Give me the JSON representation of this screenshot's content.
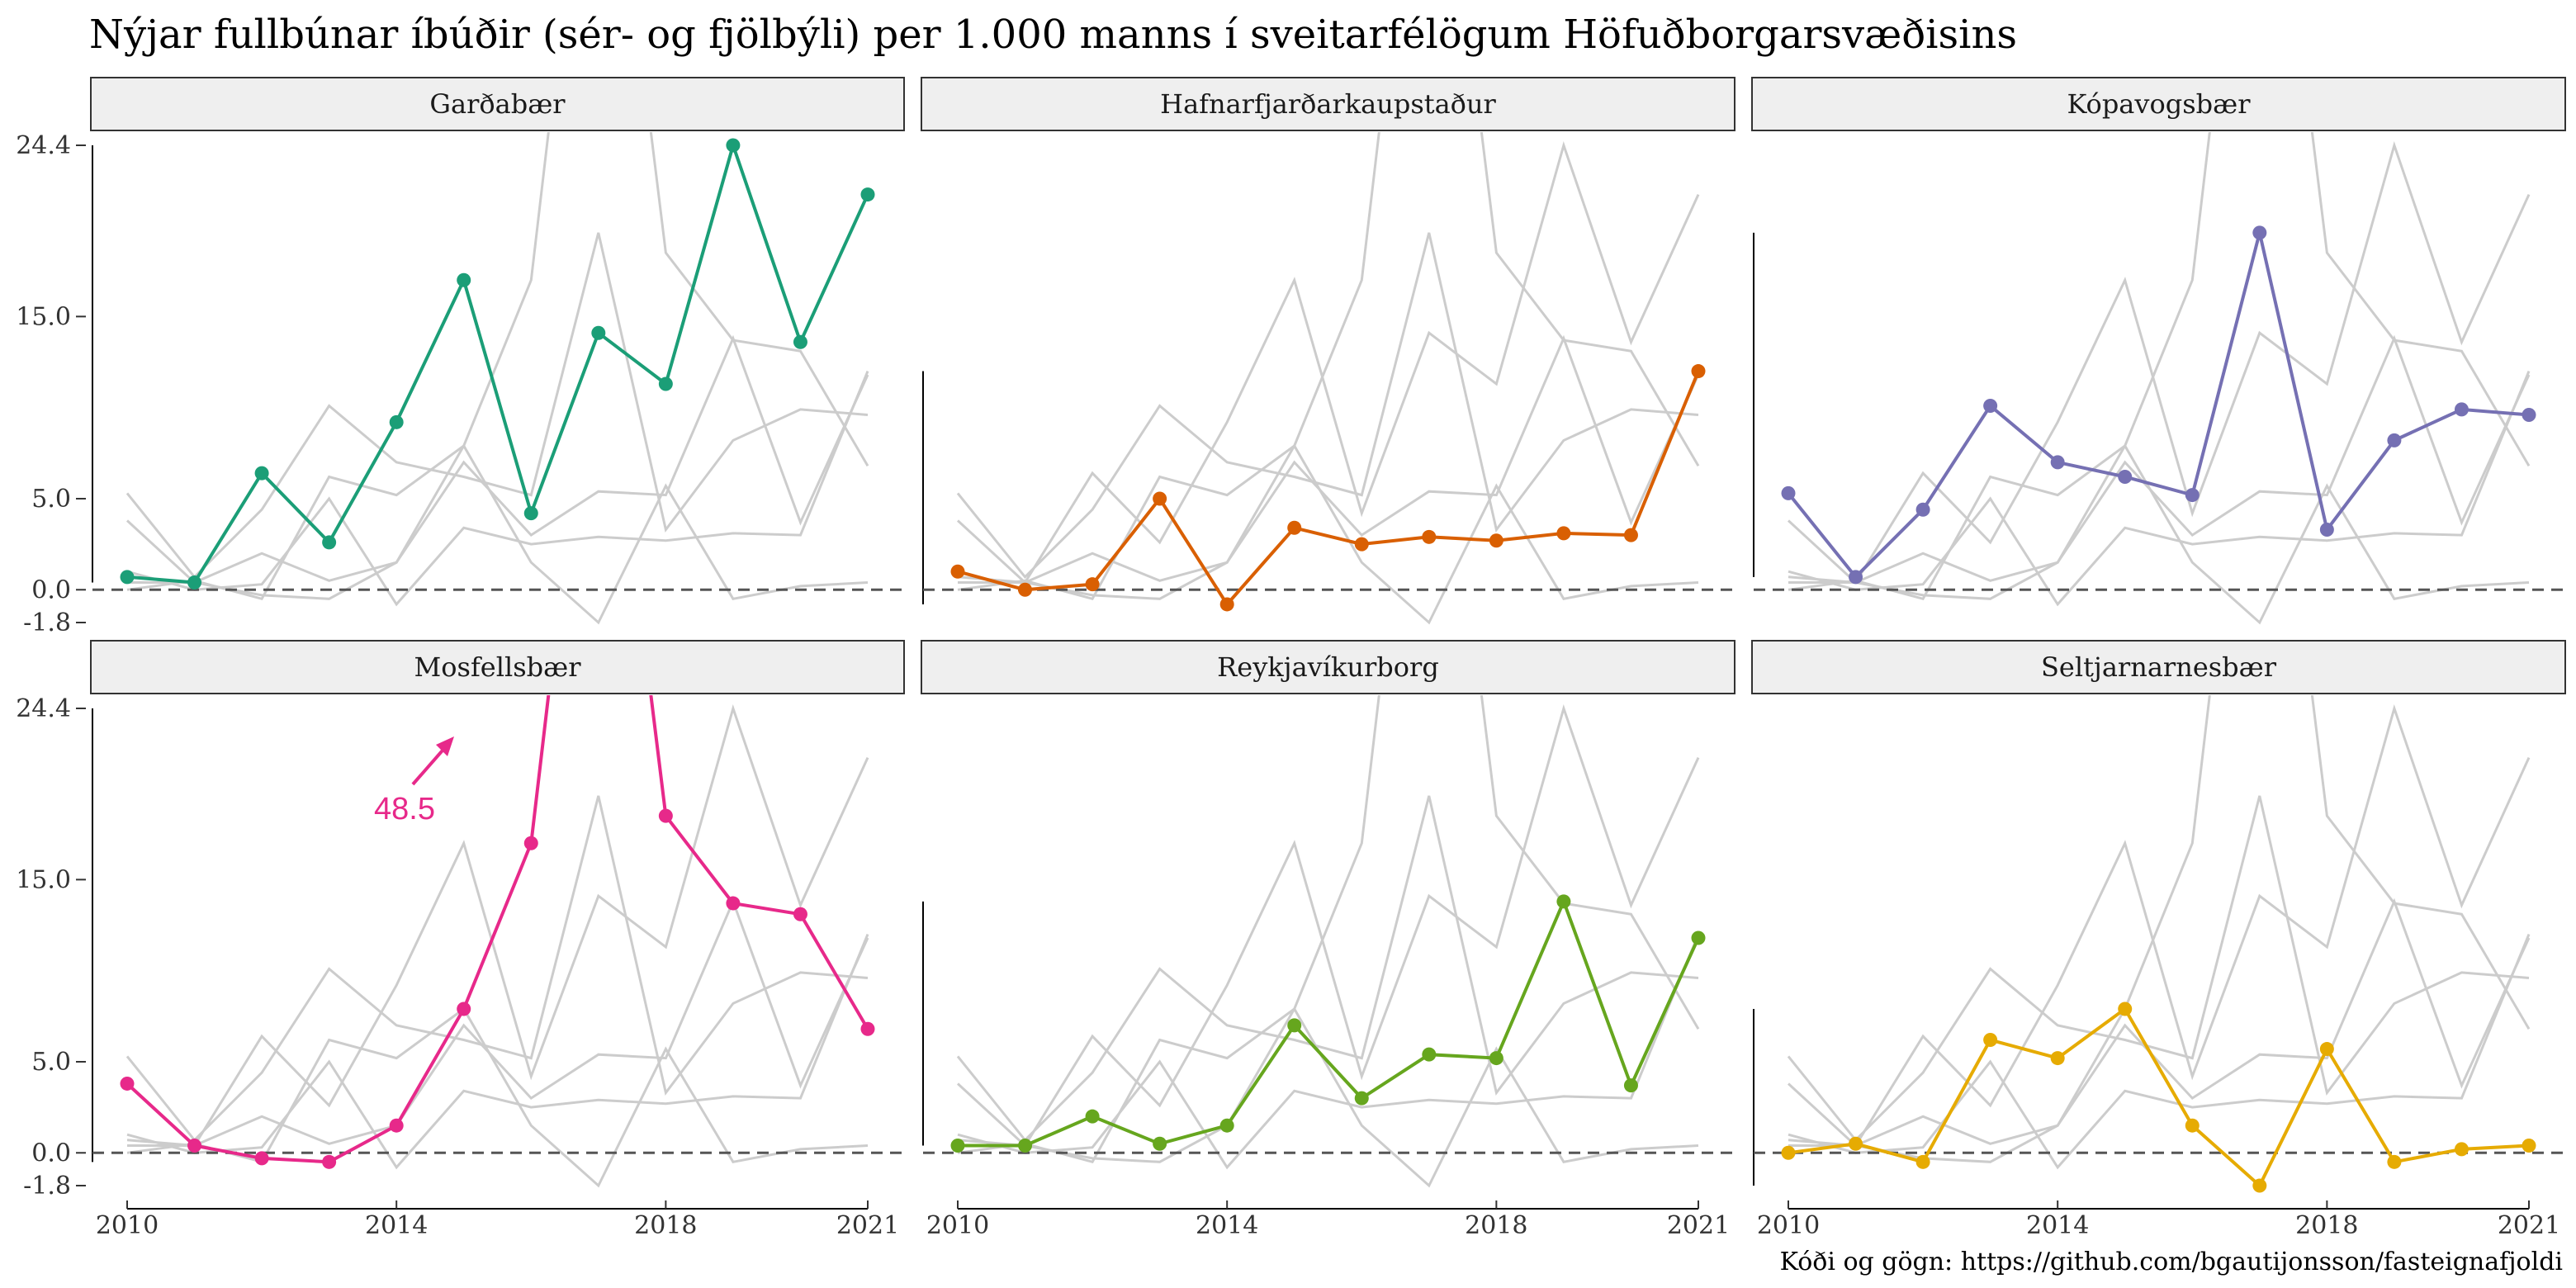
{
  "title": "Nýjar fullbúnar íbúðir (sér- og fjölbýli) per 1.000 manns í sveitarfélögum Höfuðborgarsvæðisins",
  "caption": "Kóði og gögn: https://github.com/bgautijonsson/fasteignafjoldi",
  "chart_data": {
    "type": "line",
    "layout": "small-multiples",
    "x": [
      2010,
      2011,
      2012,
      2013,
      2014,
      2015,
      2016,
      2017,
      2018,
      2019,
      2020,
      2021
    ],
    "x_ticks": [
      "2010",
      "2014",
      "2018",
      "2021"
    ],
    "y_ticks": [
      "-1.8",
      "0.0",
      "5.0",
      "15.0",
      "24.4"
    ],
    "ylim": [
      -1.8,
      24.4
    ],
    "reference_line": 0,
    "background_series_color": "#cccccc",
    "series": [
      {
        "name": "Garðabær",
        "color": "#1b9e77",
        "values": [
          0.7,
          0.4,
          6.4,
          2.6,
          9.2,
          17.0,
          4.2,
          14.1,
          11.3,
          24.4,
          13.6,
          21.7
        ]
      },
      {
        "name": "Hafnarfjarðarkaupstaður",
        "color": "#d95f02",
        "values": [
          1.0,
          0.0,
          0.3,
          5.0,
          -0.8,
          3.4,
          2.5,
          2.9,
          2.7,
          3.1,
          3.0,
          12.0
        ]
      },
      {
        "name": "Kópavogsbær",
        "color": "#7570b3",
        "values": [
          5.3,
          0.7,
          4.4,
          10.1,
          7.0,
          6.2,
          5.2,
          19.6,
          3.3,
          8.2,
          9.9,
          9.6
        ]
      },
      {
        "name": "Mosfellsbær",
        "color": "#e7298a",
        "values": [
          3.8,
          0.4,
          -0.3,
          -0.5,
          1.5,
          7.9,
          17.0,
          48.5,
          18.5,
          13.7,
          13.1,
          6.8
        ]
      },
      {
        "name": "Reykjavíkurborg",
        "color": "#66a61e",
        "values": [
          0.4,
          0.4,
          2.0,
          0.5,
          1.5,
          7.0,
          3.0,
          5.4,
          5.2,
          13.8,
          3.7,
          11.8
        ]
      },
      {
        "name": "Seltjarnarnesbær",
        "color": "#e6ab02",
        "values": [
          0.0,
          0.5,
          -0.5,
          6.2,
          5.2,
          7.9,
          1.5,
          -1.8,
          5.7,
          -0.5,
          0.2,
          0.4
        ]
      }
    ],
    "annotation": {
      "panel": "Mosfellsbær",
      "label": "48.5",
      "color": "#e7298a"
    }
  }
}
